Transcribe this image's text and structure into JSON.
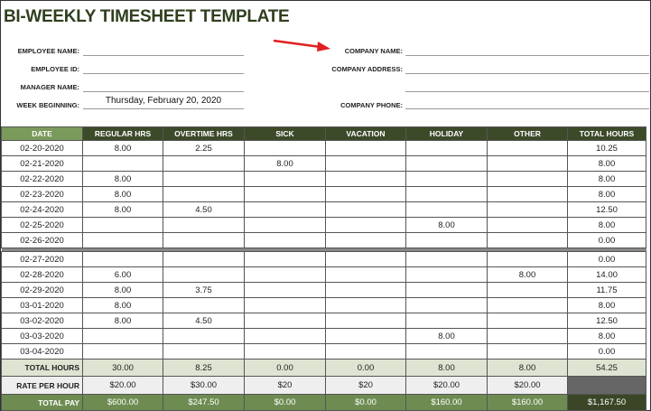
{
  "title": "BI-WEEKLY TIMESHEET TEMPLATE",
  "form": {
    "employee_name_label": "EMPLOYEE NAME:",
    "employee_id_label": "EMPLOYEE ID:",
    "manager_name_label": "MANAGER NAME:",
    "week_beginning_label": "WEEK BEGINNING:",
    "week_beginning_value": "Thursday, February 20, 2020",
    "company_name_label": "COMPANY NAME:",
    "company_address_label": "COMPANY ADDRESS:",
    "company_phone_label": "COMPANY PHONE:"
  },
  "annotation_color": "#e02020",
  "columns": [
    "DATE",
    "REGULAR HRS",
    "OVERTIME HRS",
    "SICK",
    "VACATION",
    "HOLIDAY",
    "OTHER",
    "TOTAL HOURS"
  ],
  "week1": [
    [
      "02-20-2020",
      "8.00",
      "2.25",
      "",
      "",
      "",
      "",
      "10.25"
    ],
    [
      "02-21-2020",
      "",
      "",
      "8.00",
      "",
      "",
      "",
      "8.00"
    ],
    [
      "02-22-2020",
      "8.00",
      "",
      "",
      "",
      "",
      "",
      "8.00"
    ],
    [
      "02-23-2020",
      "8.00",
      "",
      "",
      "",
      "",
      "",
      "8.00"
    ],
    [
      "02-24-2020",
      "8.00",
      "4.50",
      "",
      "",
      "",
      "",
      "12.50"
    ],
    [
      "02-25-2020",
      "",
      "",
      "",
      "",
      "8.00",
      "",
      "8.00"
    ],
    [
      "02-26-2020",
      "",
      "",
      "",
      "",
      "",
      "",
      "0.00"
    ]
  ],
  "week2": [
    [
      "02-27-2020",
      "",
      "",
      "",
      "",
      "",
      "",
      "0.00"
    ],
    [
      "02-28-2020",
      "6.00",
      "",
      "",
      "",
      "",
      "8.00",
      "14.00"
    ],
    [
      "02-29-2020",
      "8.00",
      "3.75",
      "",
      "",
      "",
      "",
      "11.75"
    ],
    [
      "03-01-2020",
      "8.00",
      "",
      "",
      "",
      "",
      "",
      "8.00"
    ],
    [
      "03-02-2020",
      "8.00",
      "4.50",
      "",
      "",
      "",
      "",
      "12.50"
    ],
    [
      "03-03-2020",
      "",
      "",
      "",
      "",
      "8.00",
      "",
      "8.00"
    ],
    [
      "03-04-2020",
      "",
      "",
      "",
      "",
      "",
      "",
      "0.00"
    ]
  ],
  "total_hours": [
    "TOTAL HOURS",
    "30.00",
    "8.25",
    "0.00",
    "0.00",
    "8.00",
    "8.00",
    "54.25"
  ],
  "rate_per_hour": [
    "RATE PER HOUR",
    "$20.00",
    "$30.00",
    "$20",
    "$20",
    "$20.00",
    "$20.00",
    ""
  ],
  "total_pay": [
    "TOTAL PAY",
    "$600.00",
    "$247.50",
    "$0.00",
    "$0.00",
    "$160.00",
    "$160.00",
    "$1,167.50"
  ]
}
